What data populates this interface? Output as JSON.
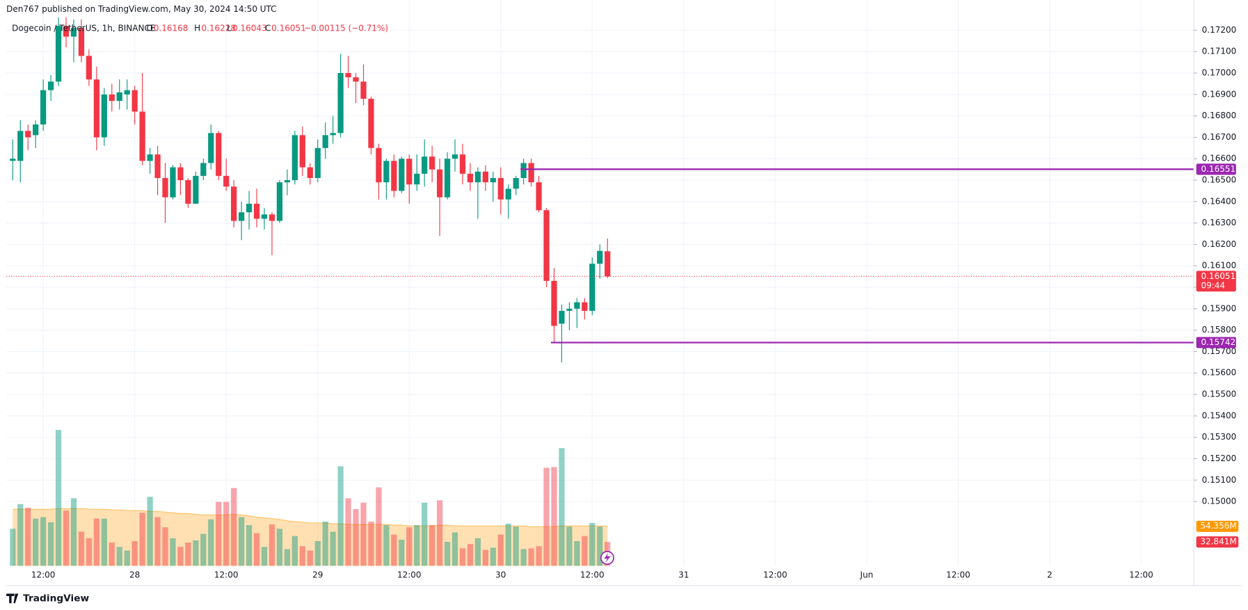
{
  "header": "Den767 published on TradingView.com, May 30, 2024 14:50 UTC",
  "footer": "TradingView",
  "chart_data": {
    "type": "candlestick",
    "title": "Dogecoin / TetherUS, 1h, BINANCE",
    "ohlc_letters": [
      "O",
      "H",
      "L",
      "C"
    ],
    "change_label": "−0.00115 (−0.71%)",
    "countdown": "09:44",
    "up_color": "#089981",
    "down_color": "#f23645",
    "volume_up_color": "rgba(8,153,129,0.45)",
    "volume_down_color": "rgba(242,54,69,0.45)",
    "ma_color": "#ff9800",
    "level_color": "#9c27b0",
    "open": [
      0.1659,
      0.1659,
      0.1673,
      0.1671,
      0.1676,
      0.1692,
      0.1696,
      0.1722,
      0.1717,
      0.1721,
      0.1708,
      0.1697,
      0.167,
      0.169,
      0.1687,
      0.169,
      0.1692,
      0.1682,
      0.1659,
      0.1662,
      0.1651,
      0.1642,
      0.1656,
      0.165,
      0.1639,
      0.1652,
      0.1658,
      0.1672,
      0.1652,
      0.1647,
      0.1631,
      0.1635,
      0.1639,
      0.1632,
      0.1634,
      0.1631,
      0.1649,
      0.165,
      0.1671,
      0.1656,
      0.1651,
      0.1665,
      0.1671,
      0.1672,
      0.17,
      0.1698,
      0.1696,
      0.1688,
      0.1665,
      0.1649,
      0.1659,
      0.1645,
      0.166,
      0.1648,
      0.1653,
      0.1661,
      0.1655,
      0.1642,
      0.166,
      0.1662,
      0.1653,
      0.1649,
      0.1654,
      0.1649,
      0.1651,
      0.1641,
      0.1646,
      0.1651,
      0.1658,
      0.1649,
      0.1636,
      0.1603,
      0.1583,
      0.1589,
      0.159,
      0.1593,
      0.1589,
      0.1611,
      0.16168
    ],
    "high": [
      0.1669,
      0.1678,
      0.1676,
      0.1678,
      0.1697,
      0.1699,
      0.1726,
      0.1726,
      0.1725,
      0.1725,
      0.1711,
      0.1703,
      0.1693,
      0.1695,
      0.1697,
      0.1697,
      0.1694,
      0.17,
      0.1665,
      0.1666,
      0.1658,
      0.1657,
      0.1658,
      0.1651,
      0.1654,
      0.166,
      0.1676,
      0.1673,
      0.166,
      0.165,
      0.164,
      0.1645,
      0.1646,
      0.1637,
      0.1635,
      0.165,
      0.1655,
      0.1673,
      0.1675,
      0.1658,
      0.1669,
      0.1677,
      0.168,
      0.1709,
      0.1708,
      0.17,
      0.1704,
      0.1689,
      0.1667,
      0.166,
      0.1662,
      0.1661,
      0.1662,
      0.1662,
      0.1669,
      0.1666,
      0.166,
      0.1663,
      0.1669,
      0.1667,
      0.1658,
      0.1656,
      0.1657,
      0.1654,
      0.1656,
      0.1648,
      0.1652,
      0.166,
      0.166,
      0.1652,
      0.1637,
      0.1609,
      0.1592,
      0.1593,
      0.1595,
      0.1595,
      0.1614,
      0.162,
      0.16228
    ],
    "low": [
      0.165,
      0.1649,
      0.1664,
      0.1665,
      0.1673,
      0.1687,
      0.1694,
      0.1712,
      0.1705,
      0.1705,
      0.1694,
      0.1664,
      0.1666,
      0.1682,
      0.1683,
      0.1683,
      0.1676,
      0.1657,
      0.1653,
      0.1643,
      0.163,
      0.1641,
      0.1643,
      0.1637,
      0.1639,
      0.165,
      0.1655,
      0.165,
      0.1645,
      0.1628,
      0.1622,
      0.1627,
      0.1628,
      0.1627,
      0.1615,
      0.163,
      0.1643,
      0.1648,
      0.1652,
      0.1648,
      0.1649,
      0.166,
      0.1667,
      0.167,
      0.1693,
      0.1686,
      0.1685,
      0.1662,
      0.1641,
      0.1641,
      0.1642,
      0.1644,
      0.1639,
      0.1645,
      0.1647,
      0.1649,
      0.1624,
      0.1641,
      0.1654,
      0.1648,
      0.1645,
      0.1632,
      0.1645,
      0.164,
      0.1634,
      0.1632,
      0.1643,
      0.1648,
      0.1647,
      0.1635,
      0.16,
      0.1574,
      0.1565,
      0.158,
      0.1581,
      0.1585,
      0.1587,
      0.1604,
      0.16043
    ],
    "close": [
      0.166,
      0.1673,
      0.167,
      0.1676,
      0.1692,
      0.1696,
      0.1722,
      0.1717,
      0.1721,
      0.1708,
      0.1697,
      0.167,
      0.169,
      0.1687,
      0.1691,
      0.1692,
      0.1682,
      0.1659,
      0.1662,
      0.1651,
      0.1642,
      0.1656,
      0.165,
      0.1639,
      0.1652,
      0.1658,
      0.1672,
      0.1652,
      0.1647,
      0.1631,
      0.1635,
      0.1639,
      0.1632,
      0.1634,
      0.1631,
      0.1649,
      0.165,
      0.1671,
      0.1656,
      0.1651,
      0.1665,
      0.1671,
      0.1672,
      0.17,
      0.1698,
      0.1696,
      0.1688,
      0.1665,
      0.1649,
      0.1659,
      0.1645,
      0.166,
      0.1648,
      0.1653,
      0.1661,
      0.1655,
      0.1642,
      0.166,
      0.1662,
      0.1653,
      0.1649,
      0.1654,
      0.1649,
      0.1651,
      0.1641,
      0.1646,
      0.1651,
      0.1658,
      0.1649,
      0.1636,
      0.1603,
      0.1582,
      0.1589,
      0.159,
      0.1593,
      0.1589,
      0.1611,
      0.1617,
      0.16051
    ],
    "volume": {
      "values": [
        51,
        85,
        80,
        65,
        67,
        60,
        187,
        76,
        93,
        47,
        38,
        65,
        65,
        32,
        26,
        21,
        34,
        73,
        95,
        67,
        53,
        38,
        26,
        32,
        35,
        44,
        64,
        88,
        88,
        107,
        67,
        56,
        45,
        26,
        57,
        51,
        23,
        41,
        27,
        21,
        34,
        61,
        47,
        137,
        93,
        78,
        87,
        61,
        108,
        56,
        43,
        36,
        53,
        56,
        87,
        56,
        90,
        33,
        46,
        24,
        30,
        38,
        22,
        25,
        43,
        58,
        54,
        23,
        24,
        27,
        135,
        136,
        162,
        54,
        34,
        41,
        59,
        54,
        32.841
      ],
      "value_labels": [
        null,
        null,
        null,
        null,
        null,
        null,
        null,
        null,
        null,
        null,
        null,
        null,
        null,
        null,
        null,
        null,
        null,
        null,
        null,
        null,
        null,
        null,
        null,
        null,
        null,
        null,
        null,
        null,
        null,
        null,
        null,
        null,
        null,
        null,
        null,
        null,
        null,
        null,
        null,
        null,
        null,
        null,
        null,
        null,
        null,
        null,
        null,
        null,
        null,
        null,
        null,
        null,
        null,
        null,
        null,
        null,
        null,
        null,
        null,
        null,
        null,
        null,
        null,
        null,
        null,
        null,
        null,
        null,
        null,
        null,
        null,
        null,
        null,
        null,
        null,
        null,
        null,
        null,
        "32.841M"
      ]
    },
    "volume_ma": {
      "values": [
        78,
        78,
        78,
        78,
        78,
        78,
        79,
        79,
        79,
        79,
        78,
        78,
        78,
        77,
        77,
        76,
        76,
        76,
        75,
        75,
        74,
        73,
        72,
        72,
        71,
        70,
        70,
        70,
        70,
        71,
        70,
        69,
        67,
        66,
        65,
        64,
        62,
        61,
        60,
        59,
        59,
        59,
        58,
        58,
        57,
        57,
        57,
        57,
        57,
        57,
        56,
        56,
        55,
        55,
        55,
        55,
        56,
        56,
        55,
        55,
        55,
        55,
        55,
        55,
        55,
        55,
        55,
        55,
        54,
        54,
        54,
        54,
        55,
        55,
        55,
        55,
        55,
        55,
        54.356
      ],
      "value_labels": [
        null,
        null,
        null,
        null,
        null,
        null,
        null,
        null,
        null,
        null,
        null,
        null,
        null,
        null,
        null,
        null,
        null,
        null,
        null,
        null,
        null,
        null,
        null,
        null,
        null,
        null,
        null,
        null,
        null,
        null,
        null,
        null,
        null,
        null,
        null,
        null,
        null,
        null,
        null,
        null,
        null,
        null,
        null,
        null,
        null,
        null,
        null,
        null,
        null,
        null,
        null,
        null,
        null,
        null,
        null,
        null,
        null,
        null,
        null,
        null,
        null,
        null,
        null,
        null,
        null,
        null,
        null,
        null,
        null,
        null,
        null,
        null,
        null,
        null,
        null,
        null,
        null,
        null,
        "54.356M"
      ]
    },
    "levels": [
      0.16551,
      0.15742
    ],
    "ylim": [
      0.147,
      0.17248
    ],
    "yticks": [
      {
        "value": 0.172,
        "label": "0.17200"
      },
      {
        "value": 0.171,
        "label": "0.17100"
      },
      {
        "value": 0.17,
        "label": "0.17000"
      },
      {
        "value": 0.169,
        "label": "0.16900"
      },
      {
        "value": 0.168,
        "label": "0.16800"
      },
      {
        "value": 0.167,
        "label": "0.16700"
      },
      {
        "value": 0.166,
        "label": "0.16600"
      },
      {
        "value": 0.165,
        "label": "0.16500"
      },
      {
        "value": 0.164,
        "label": "0.16400"
      },
      {
        "value": 0.163,
        "label": "0.16300"
      },
      {
        "value": 0.162,
        "label": "0.16200"
      },
      {
        "value": 0.161,
        "label": "0.16100"
      },
      {
        "value": 0.16,
        "label": "0.16000"
      },
      {
        "value": 0.159,
        "label": "0.15900"
      },
      {
        "value": 0.158,
        "label": "0.15800"
      },
      {
        "value": 0.157,
        "label": "0.15700"
      },
      {
        "value": 0.156,
        "label": "0.15600"
      },
      {
        "value": 0.155,
        "label": "0.15500"
      },
      {
        "value": 0.154,
        "label": "0.15400"
      },
      {
        "value": 0.153,
        "label": "0.15300"
      },
      {
        "value": 0.152,
        "label": "0.15200"
      },
      {
        "value": 0.151,
        "label": "0.15100"
      },
      {
        "value": 0.15,
        "label": "0.15000"
      }
    ],
    "xticks": [
      "12:00",
      "28",
      "12:00",
      "29",
      "12:00",
      "30",
      "12:00",
      "31",
      "12:00",
      "Jun",
      "12:00",
      "2",
      "12:00"
    ],
    "grid": true
  }
}
